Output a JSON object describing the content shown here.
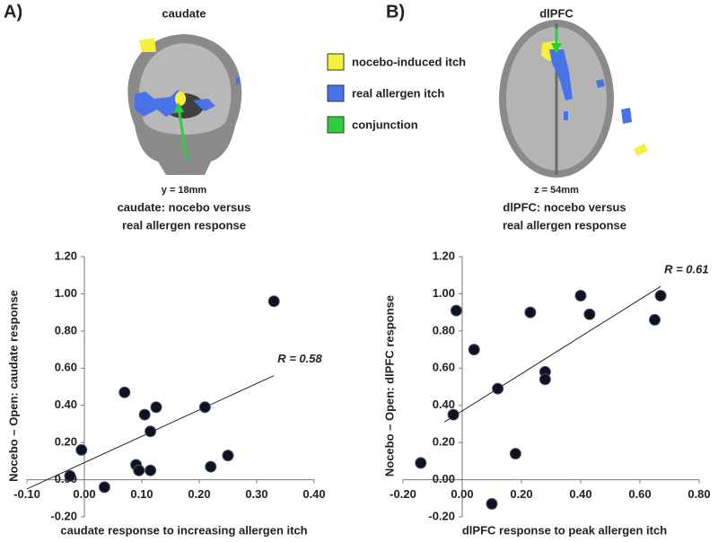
{
  "panels": [
    {
      "label": "A)",
      "region": "caudate",
      "coord": "y = 18mm"
    },
    {
      "label": "B)",
      "region": "dlPFC",
      "coord": "z = 54mm"
    }
  ],
  "legend": [
    {
      "label": "nocebo-induced itch",
      "color": "#f5f03c"
    },
    {
      "label": "real allergen itch",
      "color": "#4a72e8"
    },
    {
      "label": "conjunction",
      "color": "#2ecc40"
    }
  ],
  "chart_data": [
    {
      "type": "scatter",
      "title": [
        "caudate: nocebo versus",
        "real allergen response"
      ],
      "x_label": "caudate response to increasing allergen itch",
      "y_label": "Nocebo – Open: caudate response",
      "x": [
        -0.025,
        -0.005,
        0.035,
        0.07,
        0.09,
        0.095,
        0.105,
        0.115,
        0.115,
        0.125,
        0.21,
        0.22,
        0.25,
        0.33
      ],
      "values": [
        0.02,
        0.16,
        -0.04,
        0.47,
        0.08,
        0.05,
        0.35,
        0.26,
        0.05,
        0.39,
        0.39,
        0.07,
        0.13,
        0.96
      ],
      "color": "#0d1326",
      "fit": {
        "x": [
          -0.1,
          0.33
        ],
        "y": [
          -0.05,
          0.56
        ]
      },
      "annotation": "R = 0.58",
      "xlim": [
        -0.1,
        0.4
      ],
      "xticks": [
        {
          "value": -0.1,
          "label": "-0.10"
        },
        {
          "value": 0,
          "label": "0.00"
        },
        {
          "value": 0.1,
          "label": "0.10"
        },
        {
          "value": 0.2,
          "label": "0.20"
        },
        {
          "value": 0.3,
          "label": "0.30"
        },
        {
          "value": 0.4,
          "label": "0.40"
        }
      ],
      "ylim": [
        -0.2,
        1.2
      ],
      "yticks": [
        {
          "value": -0.2,
          "label": "-0.20"
        },
        {
          "value": 0,
          "label": "0.00"
        },
        {
          "value": 0.2,
          "label": "0.20"
        },
        {
          "value": 0.4,
          "label": "0.40"
        },
        {
          "value": 0.6,
          "label": "0.60"
        },
        {
          "value": 0.8,
          "label": "0.80"
        },
        {
          "value": 1,
          "label": "1.00"
        },
        {
          "value": 1.2,
          "label": "1.20"
        }
      ]
    },
    {
      "type": "scatter",
      "title": [
        "dlPFC: nocebo versus",
        "real allergen response"
      ],
      "x_label": "dlPFC response to peak allergen itch",
      "y_label": "Nocebo – Open: dlPFC response",
      "x": [
        -0.14,
        -0.02,
        -0.03,
        0.04,
        0.12,
        0.18,
        0.23,
        0.28,
        0.28,
        0.4,
        0.43,
        0.65,
        0.67,
        0.1
      ],
      "values": [
        0.09,
        0.91,
        0.35,
        0.7,
        0.49,
        0.14,
        0.9,
        0.58,
        0.54,
        0.99,
        0.89,
        0.86,
        0.99,
        -0.13
      ],
      "color": "#0d1326",
      "fit": {
        "x": [
          -0.06,
          0.67
        ],
        "y": [
          0.31,
          1.04
        ]
      },
      "annotation": "R = 0.61",
      "xlim": [
        -0.2,
        0.8
      ],
      "xticks": [
        {
          "value": -0.2,
          "label": "-0.20"
        },
        {
          "value": 0,
          "label": "0.00"
        },
        {
          "value": 0.2,
          "label": "0.20"
        },
        {
          "value": 0.4,
          "label": "0.40"
        },
        {
          "value": 0.6,
          "label": "0.60"
        },
        {
          "value": 0.8,
          "label": "0.80"
        }
      ],
      "ylim": [
        -0.2,
        1.2
      ],
      "yticks": [
        {
          "value": -0.2,
          "label": "-0.20"
        },
        {
          "value": 0,
          "label": "0.00"
        },
        {
          "value": 0.2,
          "label": "0.20"
        },
        {
          "value": 0.4,
          "label": "0.40"
        },
        {
          "value": 0.6,
          "label": "0.60"
        },
        {
          "value": 0.8,
          "label": "0.80"
        },
        {
          "value": 1,
          "label": "1.00"
        },
        {
          "value": 1.2,
          "label": "1.20"
        }
      ]
    }
  ]
}
